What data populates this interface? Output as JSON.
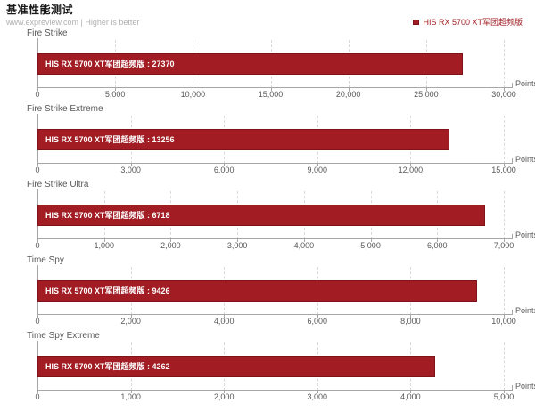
{
  "header": {
    "title": "基准性能测试",
    "subtitle": "www.expreview.com | Higher is better"
  },
  "legend": {
    "label": "HIS RX 5700 XT军团超频版"
  },
  "series_name": "HIS RX 5700 XT军团超频版",
  "axis_unit": "Points",
  "colors": {
    "bar": "#a11d23",
    "bar_border": "#7e1318",
    "legend_text": "#a11d23",
    "axis": "#a6a6a6",
    "grid": "#d9d9d9",
    "text": "#595959",
    "subtitle": "#b0b0b0"
  },
  "chart_data": [
    {
      "type": "bar",
      "title": "Fire Strike",
      "series": "HIS RX 5700 XT军团超频版",
      "value": 27370,
      "label_separator": " : ",
      "xlim": [
        0,
        30000
      ],
      "tick_labels": [
        "0",
        "5,000",
        "10,000",
        "15,000",
        "20,000",
        "25,000",
        "30,000"
      ],
      "xlabel": "Points",
      "grid": true,
      "legend_position": "top-right"
    },
    {
      "type": "bar",
      "title": "Fire Strike Extreme",
      "series": "HIS RX 5700 XT军团超频版",
      "value": 13256,
      "label_separator": " : ",
      "xlim": [
        0,
        15000
      ],
      "tick_labels": [
        "0",
        "3,000",
        "6,000",
        "9,000",
        "12,000",
        "15,000"
      ],
      "xlabel": "Points",
      "grid": true,
      "legend_position": "top-right"
    },
    {
      "type": "bar",
      "title": "Fire Strike Ultra",
      "series": "HIS RX 5700 XT军团超频版",
      "value": 6718,
      "label_separator": " : ",
      "xlim": [
        0,
        7000
      ],
      "tick_labels": [
        "0",
        "1,000",
        "2,000",
        "3,000",
        "4,000",
        "5,000",
        "6,000",
        "7,000"
      ],
      "xlabel": "Points",
      "grid": true,
      "legend_position": "top-right"
    },
    {
      "type": "bar",
      "title": "Time Spy",
      "series": "HIS RX 5700 XT军团超频版",
      "value": 9426,
      "label_separator": " : ",
      "xlim": [
        0,
        10000
      ],
      "tick_labels": [
        "0",
        "2,000",
        "4,000",
        "6,000",
        "8,000",
        "10,000"
      ],
      "xlabel": "Points",
      "grid": true,
      "legend_position": "top-right"
    },
    {
      "type": "bar",
      "title": "Time Spy Extreme",
      "series": "HIS RX 5700 XT军团超频版",
      "value": 4262,
      "label_separator": " : ",
      "xlim": [
        0,
        5000
      ],
      "tick_labels": [
        "0",
        "1,000",
        "2,000",
        "3,000",
        "4,000",
        "5,000"
      ],
      "xlabel": "Points",
      "grid": true,
      "legend_position": "top-right"
    }
  ]
}
